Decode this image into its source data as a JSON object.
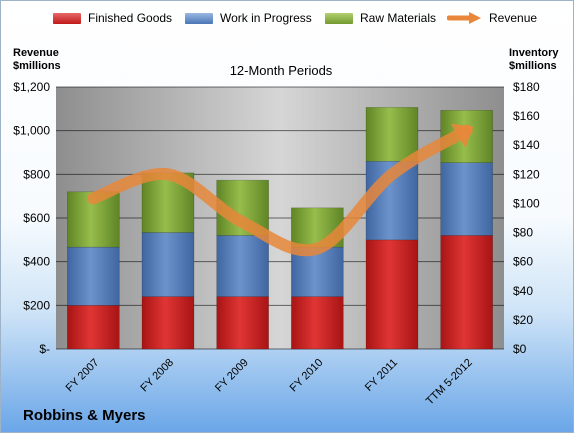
{
  "legend": {
    "finished_goods": "Finished Goods",
    "work_in_progress": "Work in Progress",
    "raw_materials": "Raw Materials",
    "revenue": "Revenue"
  },
  "left_axis_title_1": "Revenue",
  "left_axis_title_2": "$millions",
  "right_axis_title_1": "Inventory",
  "right_axis_title_2": "$millions",
  "chart_title": "12-Month Periods",
  "company_name": "Robbins & Myers",
  "colors": {
    "finished_goods": "#d42a2a",
    "work_in_progress": "#5b84bf",
    "raw_materials": "#86ad3e",
    "revenue": "#e8873a"
  },
  "chart_data": {
    "type": "bar",
    "stacked": true,
    "title": "12-Month Periods",
    "categories": [
      "FY 2007",
      "FY 2008",
      "FY 2009",
      "FY 2010",
      "FY 2011",
      "TTM 5-2012"
    ],
    "series": [
      {
        "name": "Finished Goods",
        "axis": "right",
        "values": [
          30,
          36,
          36,
          36,
          75,
          78
        ]
      },
      {
        "name": "Work in Progress",
        "axis": "right",
        "values": [
          40,
          44,
          42,
          34,
          54,
          50
        ]
      },
      {
        "name": "Raw Materials",
        "axis": "right",
        "values": [
          38,
          41,
          38,
          27,
          37,
          36
        ]
      },
      {
        "name": "Revenue",
        "type": "line",
        "axis": "left",
        "values": [
          690,
          800,
          580,
          460,
          800,
          1000
        ]
      }
    ],
    "left_axis": {
      "label": "Revenue $millions",
      "ylim": [
        0,
        1200
      ],
      "ticks": [
        "$-",
        "$200",
        "$400",
        "$600",
        "$800",
        "$1,000",
        "$1,200"
      ]
    },
    "right_axis": {
      "label": "Inventory $millions",
      "ylim": [
        0,
        180
      ],
      "ticks": [
        "$0",
        "$20",
        "$40",
        "$60",
        "$80",
        "$100",
        "$120",
        "$140",
        "$160",
        "$180"
      ]
    },
    "legend_position": "top",
    "grid": true
  }
}
